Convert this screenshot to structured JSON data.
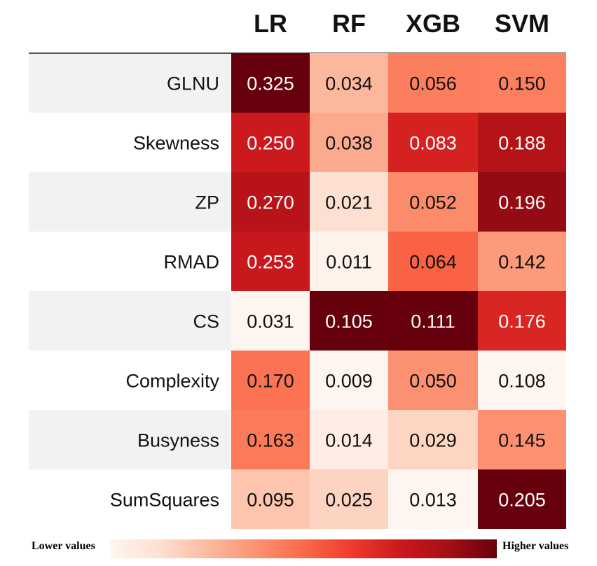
{
  "chart_data": {
    "type": "heatmap",
    "columns": [
      "LR",
      "RF",
      "XGB",
      "SVM"
    ],
    "rows": [
      "GLNU",
      "Skewness",
      "ZP",
      "RMAD",
      "CS",
      "Complexity",
      "Busyness",
      "SumSquares"
    ],
    "values": [
      [
        "0.325",
        "0.034",
        "0.056",
        "0.150"
      ],
      [
        "0.250",
        "0.038",
        "0.083",
        "0.188"
      ],
      [
        "0.270",
        "0.021",
        "0.052",
        "0.196"
      ],
      [
        "0.253",
        "0.011",
        "0.064",
        "0.142"
      ],
      [
        "0.031",
        "0.105",
        "0.111",
        "0.176"
      ],
      [
        "0.170",
        "0.009",
        "0.050",
        "0.108"
      ],
      [
        "0.163",
        "0.014",
        "0.029",
        "0.145"
      ],
      [
        "0.095",
        "0.025",
        "0.013",
        "0.205"
      ]
    ],
    "color_scale": "per-column",
    "colors": {
      "low": "#fff5f0",
      "high": "#67000d"
    },
    "row_stripe_colors": [
      "#f2f2f2",
      "#ffffff"
    ]
  },
  "legend": {
    "low_label": "Lower values",
    "high_label": "Higher values"
  }
}
